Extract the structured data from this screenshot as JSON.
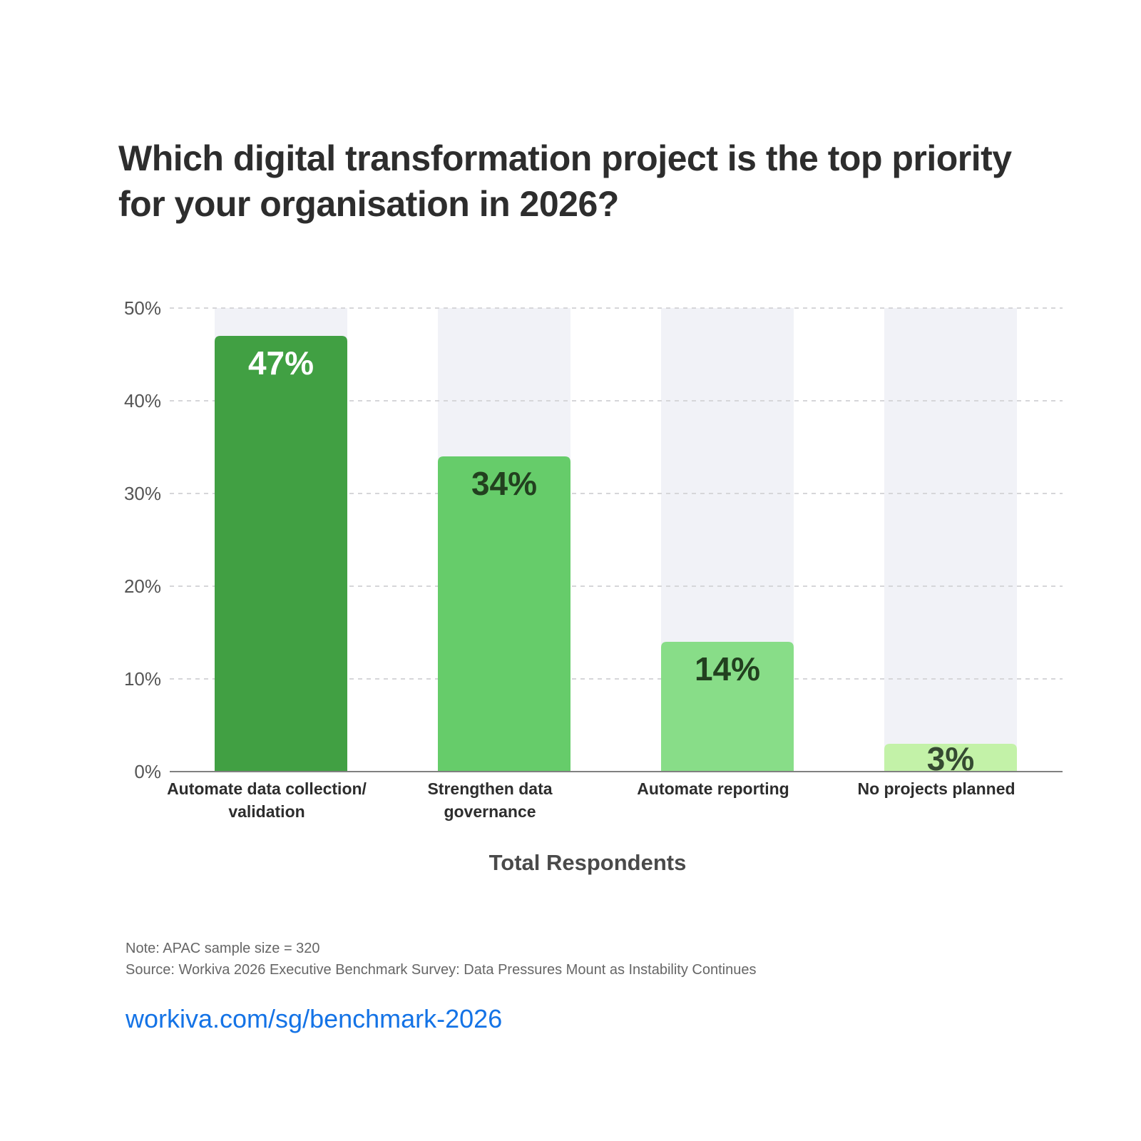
{
  "chart_data": {
    "type": "bar",
    "title": "Which digital transformation project is the top priority for your organisation in 2026?",
    "title_lines": [
      "Which digital transformation project is the top priority",
      "for your organisation in 2026?"
    ],
    "categories": [
      "Automate data collection/ validation",
      "Strengthen data governance",
      "Automate reporting",
      "No projects planned"
    ],
    "category_lines": [
      [
        "Automate data collection/",
        "validation"
      ],
      [
        "Strengthen data",
        "governance"
      ],
      [
        "Automate reporting"
      ],
      [
        "No projects planned"
      ]
    ],
    "values": [
      47,
      34,
      14,
      3
    ],
    "data_labels": [
      "47%",
      "34%",
      "14%",
      "3%"
    ],
    "colors": [
      "#41a043",
      "#66cc6a",
      "#88dd88",
      "#c3f2a8"
    ],
    "label_colors": [
      "#ffffff",
      "#22401f",
      "#22401f",
      "#354a32"
    ],
    "background_column_color": "#f1f2f7",
    "xlabel": "Total Respondents",
    "ylabel": "",
    "ylim": [
      0,
      50
    ],
    "yticks": [
      0,
      10,
      20,
      30,
      40,
      50
    ],
    "ytick_labels": [
      "0%",
      "10%",
      "20%",
      "30%",
      "40%",
      "50%"
    ],
    "grid": true,
    "grid_style": "dashed",
    "legend": "none"
  },
  "footer": {
    "note": "Note: APAC sample size = 320",
    "source": "Source: Workiva 2026 Executive Benchmark Survey: Data Pressures Mount as Instability Continues",
    "link_text": "workiva.com/sg/benchmark-2026",
    "link_color": "#1473e6"
  }
}
